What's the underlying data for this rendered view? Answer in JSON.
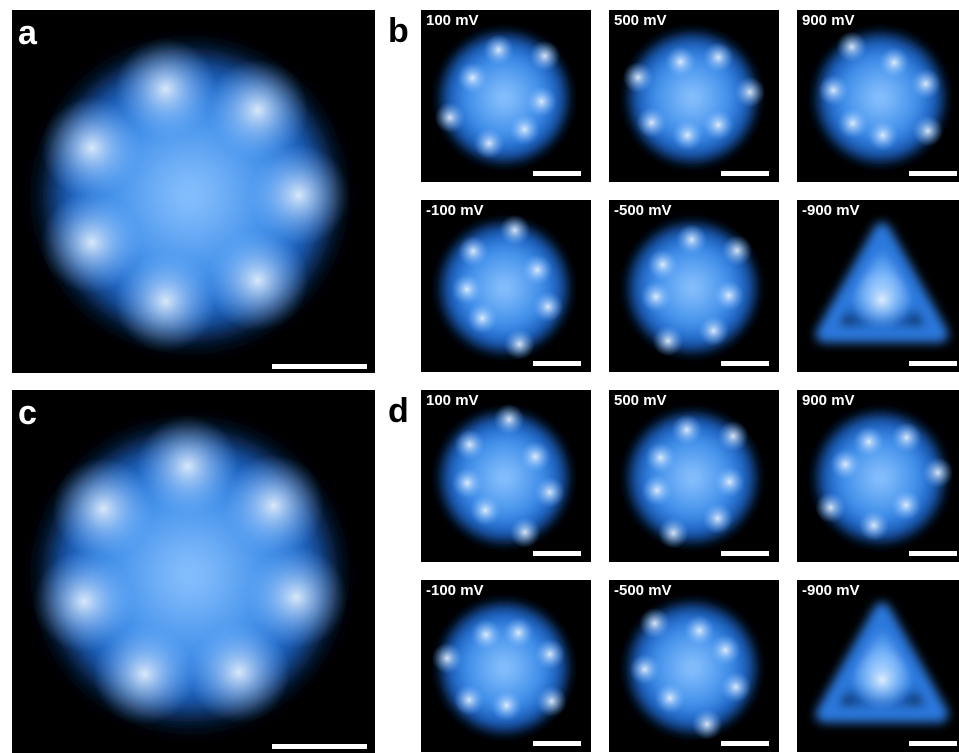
{
  "panels": [
    {
      "label": "a"
    },
    {
      "label": "b",
      "images": [
        {
          "label": "100 mV"
        },
        {
          "label": "500 mV"
        },
        {
          "label": "900 mV"
        },
        {
          "label": "-100 mV"
        },
        {
          "label": "-500 mV"
        },
        {
          "label": "-900 mV"
        }
      ]
    },
    {
      "label": "c"
    },
    {
      "label": "d",
      "images": [
        {
          "label": "100 mV"
        },
        {
          "label": "500 mV"
        },
        {
          "label": "900 mV"
        },
        {
          "label": "-100 mV"
        },
        {
          "label": "-500 mV"
        },
        {
          "label": "-900 mV"
        }
      ]
    }
  ]
}
